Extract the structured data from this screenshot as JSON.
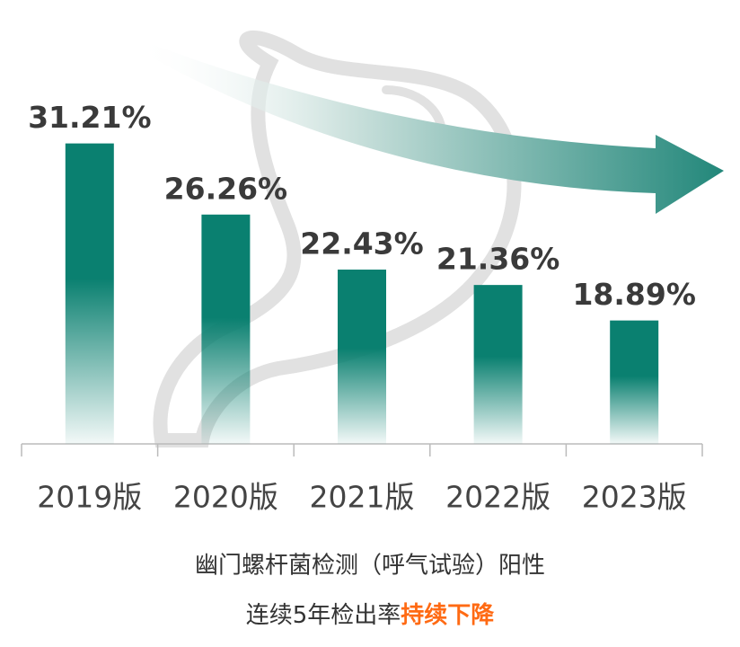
{
  "chart_data": {
    "type": "bar",
    "categories": [
      "2019版",
      "2020版",
      "2021版",
      "2022版",
      "2023版"
    ],
    "values": [
      31.21,
      26.26,
      22.43,
      21.36,
      18.89
    ],
    "value_labels": [
      "31.21%",
      "26.26%",
      "22.43%",
      "21.36%",
      "18.89%"
    ],
    "color": "#0a8070",
    "ylim": [
      10.3,
      35
    ],
    "caption": [
      "幽门螺杆菌检测（呼气试验）阳性",
      "连续5年检出率",
      "持续下降"
    ],
    "caption_highlight_color": "#ff6a13"
  }
}
